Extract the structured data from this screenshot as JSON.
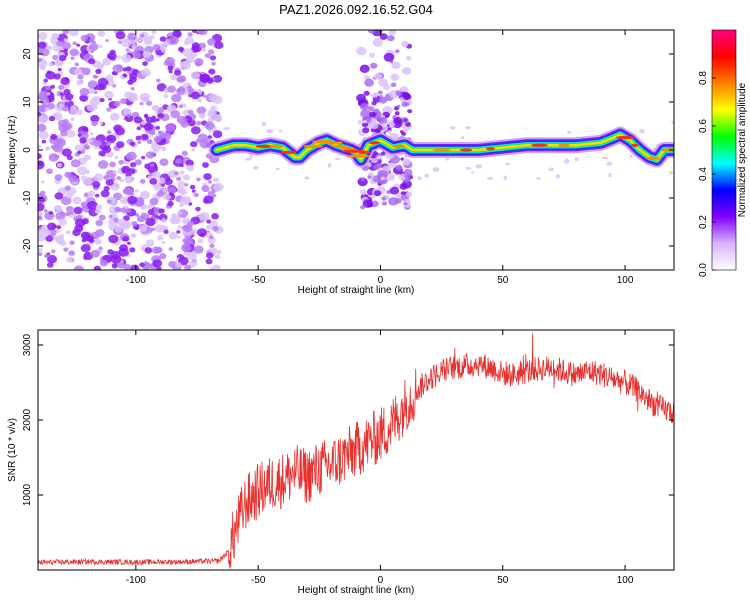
{
  "figure": {
    "title": "PAZ1.2026.092.16.52.G04"
  },
  "chart_data": [
    {
      "type": "heatmap",
      "xlabel": "Height of straight line (km)",
      "ylabel": "Frequency (Hz)",
      "xlim": [
        -140,
        120
      ],
      "ylim": [
        -25,
        25
      ],
      "xticks": [
        -100,
        -50,
        0,
        50,
        100
      ],
      "yticks": [
        -20,
        -10,
        0,
        10,
        20
      ],
      "colorbar": {
        "label": "Normalized spectral amplitude",
        "range": [
          0,
          1
        ],
        "ticks": [
          0.0,
          0.2,
          0.4,
          0.6,
          0.8
        ],
        "tick_labels": [
          "0.0",
          "0.2",
          "0.4",
          "0.6",
          "0.8"
        ],
        "colormap": [
          "#ffffff",
          "#d9b3ff",
          "#8000ff",
          "#0000ff",
          "#00ffff",
          "#00ff00",
          "#ffff00",
          "#ff8000",
          "#ff0000",
          "#ff0080"
        ]
      },
      "noise_region_x": [
        -140,
        -66
      ],
      "burst_region_x": [
        -8,
        12
      ],
      "ridge": {
        "x": [
          -67,
          -60,
          -55,
          -50,
          -45,
          -40,
          -35,
          -33,
          -30,
          -25,
          -22,
          -18,
          -15,
          -12,
          -10,
          -8,
          -5,
          0,
          5,
          10,
          13,
          20,
          30,
          40,
          50,
          60,
          70,
          80,
          90,
          95,
          98,
          102,
          106,
          110,
          113,
          116,
          120
        ],
        "y": [
          0,
          1,
          1,
          0.5,
          1,
          0.5,
          -1.5,
          -1.5,
          0,
          1.5,
          2,
          1,
          0.5,
          0,
          -0.5,
          -2,
          1,
          2,
          0.5,
          1,
          0,
          0,
          0,
          0,
          0.5,
          1,
          1,
          1,
          1.5,
          2.5,
          3.2,
          2,
          0,
          -1.5,
          -2,
          0,
          0
        ]
      }
    },
    {
      "type": "line",
      "xlabel": "Height of straight line (km)",
      "ylabel": "SNR (10 * v/v)",
      "xlim": [
        -140,
        120
      ],
      "ylim": [
        0,
        3200
      ],
      "xticks": [
        -100,
        -50,
        0,
        50,
        100
      ],
      "yticks": [
        1000,
        2000,
        3000
      ],
      "color": "#e8302e",
      "series": [
        {
          "x": [
            -140,
            -120,
            -100,
            -80,
            -66,
            -62,
            -58,
            -55,
            -50,
            -45,
            -40,
            -35,
            -30,
            -25,
            -20,
            -15,
            -10,
            -5,
            0,
            5,
            10,
            15,
            20,
            25,
            30,
            35,
            40,
            45,
            50,
            55,
            60,
            65,
            70,
            75,
            80,
            85,
            90,
            95,
            100,
            105,
            110,
            115,
            120
          ],
          "y": [
            100,
            110,
            105,
            110,
            120,
            250,
            650,
            900,
            1050,
            1150,
            1200,
            1300,
            1250,
            1350,
            1400,
            1500,
            1600,
            1700,
            1800,
            1950,
            2200,
            2400,
            2550,
            2650,
            2700,
            2720,
            2750,
            2700,
            2620,
            2600,
            2650,
            2680,
            2700,
            2650,
            2600,
            2650,
            2620,
            2550,
            2500,
            2400,
            2250,
            2150,
            2100
          ]
        }
      ]
    }
  ]
}
